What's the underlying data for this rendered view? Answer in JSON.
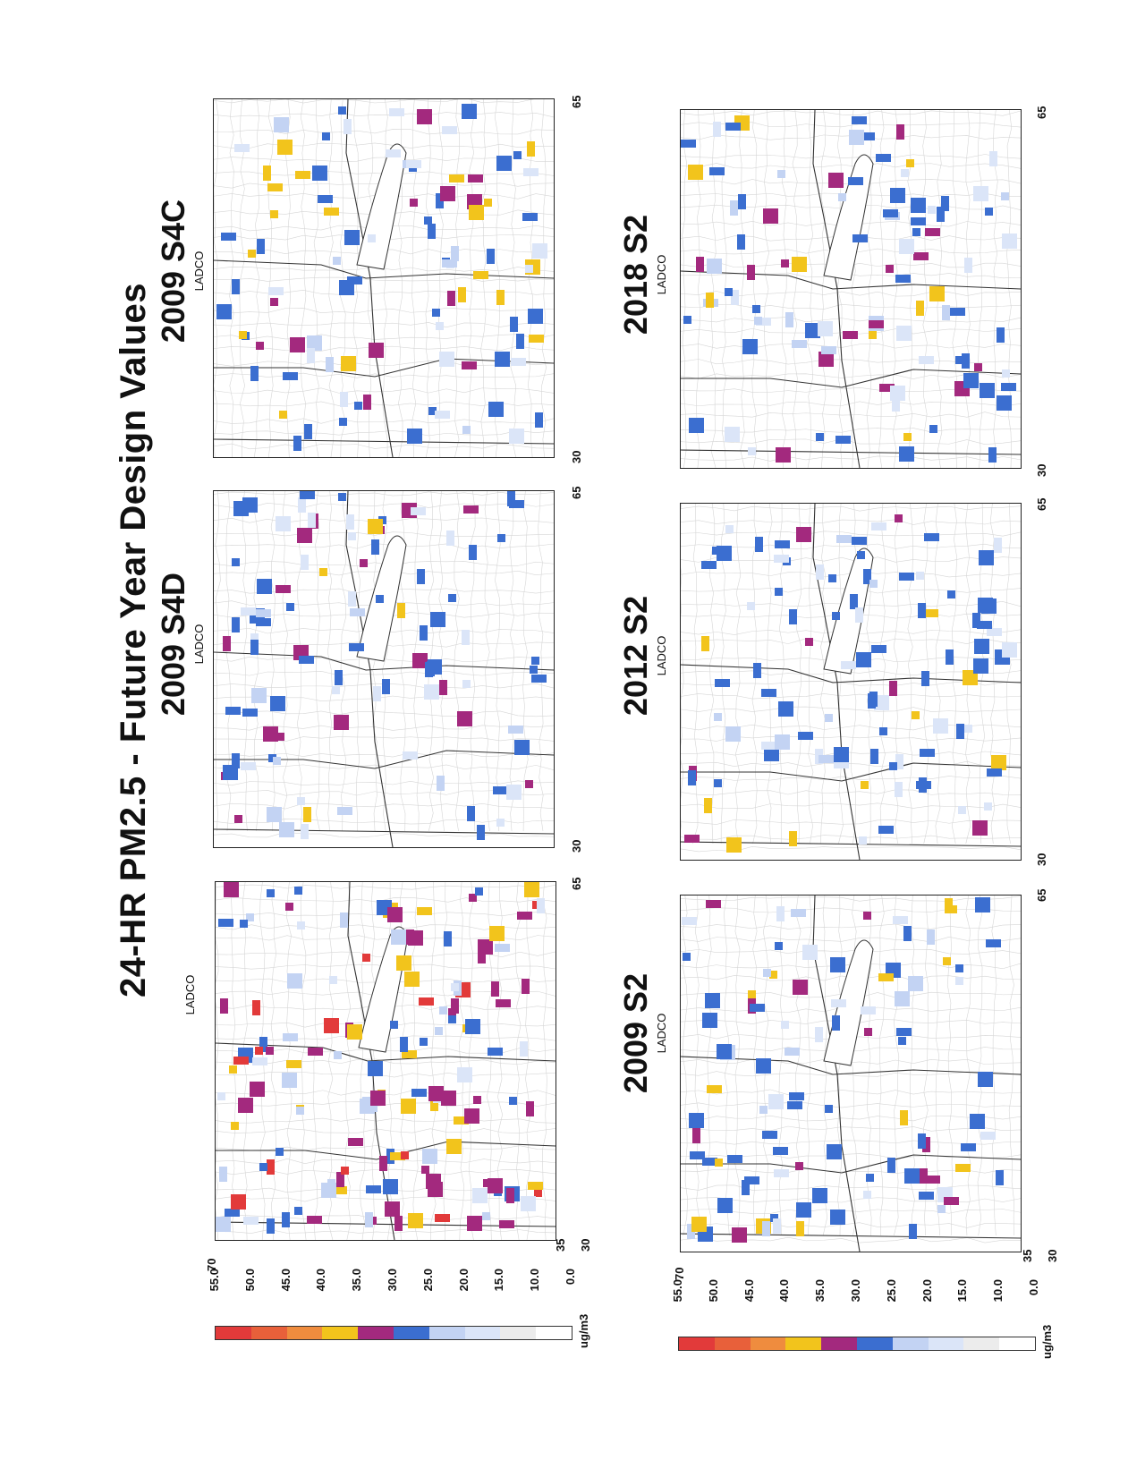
{
  "page_title": "24-HR PM2.5 - Future Year Design Values",
  "panels": [
    {
      "id": "base",
      "title": "",
      "subtitle": "LADCO",
      "x_ticks": [
        "30",
        "65"
      ],
      "y_ticks": [
        "35",
        "70"
      ]
    },
    {
      "id": "s4d",
      "title": "2009 S4D",
      "subtitle": "LADCO",
      "x_ticks": [
        "30",
        "65"
      ]
    },
    {
      "id": "s4c",
      "title": "2009 S4C",
      "subtitle": "LADCO",
      "x_ticks": [
        "30",
        "65"
      ]
    },
    {
      "id": "s2_2009",
      "title": "2009 S2",
      "subtitle": "LADCO",
      "x_ticks": [
        "30",
        "65"
      ],
      "y_ticks": [
        "35",
        "70"
      ]
    },
    {
      "id": "s2_2012",
      "title": "2012 S2",
      "subtitle": "LADCO",
      "x_ticks": [
        "30",
        "65"
      ]
    },
    {
      "id": "s2_2018",
      "title": "2018 S2",
      "subtitle": "LADCO",
      "x_ticks": [
        "30",
        "65"
      ]
    }
  ],
  "colorbar": {
    "unit": "ug/m3",
    "labels": [
      "55.0",
      "50.0",
      "45.0",
      "40.0",
      "35.0",
      "30.0",
      "25.0",
      "20.0",
      "15.0",
      "10.0",
      "0.0"
    ],
    "colors": [
      "#e23a3a",
      "#e8603a",
      "#ef8c3e",
      "#f2c41c",
      "#a3297e",
      "#3b6ed0",
      "#c3d3f3",
      "#dbe5f8",
      "#ececec",
      "#ffffff"
    ]
  }
}
